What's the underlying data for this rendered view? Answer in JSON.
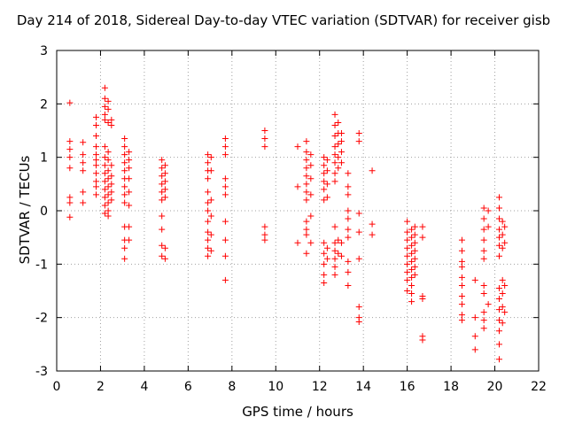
{
  "chart_data": {
    "type": "scatter",
    "title": "Day 214 of 2018, Sidereal Day-to-day VTEC variation (SDTVAR) for receiver gisb",
    "xlabel": "GPS time / hours",
    "ylabel": "SDTVAR / TECUs",
    "xlim": [
      0,
      22
    ],
    "ylim": [
      -3,
      3
    ],
    "xticks": [
      "0",
      "2",
      "4",
      "6",
      "8",
      "10",
      "12",
      "14",
      "16",
      "18",
      "20",
      "22"
    ],
    "yticks": [
      "-3",
      "-2",
      "-1",
      "0",
      "1",
      "2",
      "3"
    ],
    "grid": true,
    "marker": "+",
    "color": "#ff0000",
    "series": [
      {
        "name": "SDTVAR",
        "points": [
          [
            0.6,
            2.02
          ],
          [
            0.6,
            1.3
          ],
          [
            0.6,
            1.15
          ],
          [
            0.6,
            1.0
          ],
          [
            0.6,
            0.8
          ],
          [
            0.6,
            0.25
          ],
          [
            0.6,
            0.15
          ],
          [
            0.6,
            -0.12
          ],
          [
            1.2,
            1.28
          ],
          [
            1.2,
            1.05
          ],
          [
            1.2,
            0.9
          ],
          [
            1.2,
            0.75
          ],
          [
            1.2,
            0.35
          ],
          [
            1.2,
            0.15
          ],
          [
            1.8,
            1.75
          ],
          [
            1.8,
            1.6
          ],
          [
            1.8,
            1.4
          ],
          [
            1.8,
            1.2
          ],
          [
            1.8,
            1.05
          ],
          [
            1.8,
            0.95
          ],
          [
            1.8,
            0.85
          ],
          [
            1.8,
            0.7
          ],
          [
            1.8,
            0.55
          ],
          [
            1.8,
            0.45
          ],
          [
            1.8,
            0.3
          ],
          [
            2.2,
            2.3
          ],
          [
            2.2,
            2.1
          ],
          [
            2.2,
            1.95
          ],
          [
            2.2,
            1.8
          ],
          [
            2.2,
            1.7
          ],
          [
            2.2,
            1.2
          ],
          [
            2.2,
            1.0
          ],
          [
            2.2,
            0.85
          ],
          [
            2.2,
            0.7
          ],
          [
            2.2,
            0.55
          ],
          [
            2.2,
            0.4
          ],
          [
            2.2,
            0.25
          ],
          [
            2.2,
            0.1
          ],
          [
            2.2,
            -0.05
          ],
          [
            2.35,
            2.05
          ],
          [
            2.35,
            1.9
          ],
          [
            2.35,
            1.65
          ],
          [
            2.35,
            1.1
          ],
          [
            2.35,
            0.95
          ],
          [
            2.35,
            0.75
          ],
          [
            2.35,
            0.6
          ],
          [
            2.35,
            0.45
          ],
          [
            2.35,
            0.3
          ],
          [
            2.35,
            0.15
          ],
          [
            2.35,
            0.0
          ],
          [
            2.35,
            -0.1
          ],
          [
            2.5,
            1.7
          ],
          [
            2.5,
            1.6
          ],
          [
            2.5,
            0.85
          ],
          [
            2.5,
            0.65
          ],
          [
            2.5,
            0.5
          ],
          [
            2.5,
            0.35
          ],
          [
            2.5,
            0.2
          ],
          [
            3.1,
            1.35
          ],
          [
            3.1,
            1.2
          ],
          [
            3.1,
            1.05
          ],
          [
            3.1,
            0.9
          ],
          [
            3.1,
            0.75
          ],
          [
            3.1,
            0.6
          ],
          [
            3.1,
            0.45
          ],
          [
            3.1,
            0.3
          ],
          [
            3.1,
            0.15
          ],
          [
            3.1,
            -0.3
          ],
          [
            3.1,
            -0.55
          ],
          [
            3.1,
            -0.7
          ],
          [
            3.1,
            -0.9
          ],
          [
            3.3,
            1.1
          ],
          [
            3.3,
            0.95
          ],
          [
            3.3,
            0.8
          ],
          [
            3.3,
            0.6
          ],
          [
            3.3,
            0.35
          ],
          [
            3.3,
            0.1
          ],
          [
            3.3,
            -0.3
          ],
          [
            3.3,
            -0.55
          ],
          [
            4.8,
            0.95
          ],
          [
            4.8,
            0.8
          ],
          [
            4.8,
            0.65
          ],
          [
            4.8,
            0.5
          ],
          [
            4.8,
            0.35
          ],
          [
            4.8,
            0.2
          ],
          [
            4.8,
            -0.1
          ],
          [
            4.8,
            -0.35
          ],
          [
            4.8,
            -0.65
          ],
          [
            4.8,
            -0.85
          ],
          [
            4.95,
            0.85
          ],
          [
            4.95,
            0.7
          ],
          [
            4.95,
            0.55
          ],
          [
            4.95,
            0.4
          ],
          [
            4.95,
            0.25
          ],
          [
            4.95,
            -0.7
          ],
          [
            4.95,
            -0.9
          ],
          [
            6.9,
            1.05
          ],
          [
            6.9,
            0.9
          ],
          [
            6.9,
            0.75
          ],
          [
            6.9,
            0.6
          ],
          [
            6.9,
            0.35
          ],
          [
            6.9,
            0.15
          ],
          [
            6.9,
            0.0
          ],
          [
            6.9,
            -0.2
          ],
          [
            6.9,
            -0.4
          ],
          [
            6.9,
            -0.55
          ],
          [
            6.9,
            -0.7
          ],
          [
            6.9,
            -0.85
          ],
          [
            7.05,
            1.0
          ],
          [
            7.05,
            0.75
          ],
          [
            7.05,
            0.2
          ],
          [
            7.05,
            -0.1
          ],
          [
            7.05,
            -0.45
          ],
          [
            7.05,
            -0.75
          ],
          [
            7.7,
            1.35
          ],
          [
            7.7,
            1.2
          ],
          [
            7.7,
            1.05
          ],
          [
            7.7,
            0.6
          ],
          [
            7.7,
            0.45
          ],
          [
            7.7,
            0.3
          ],
          [
            7.7,
            -0.2
          ],
          [
            7.7,
            -0.55
          ],
          [
            7.7,
            -0.85
          ],
          [
            7.7,
            -1.3
          ],
          [
            9.5,
            1.5
          ],
          [
            9.5,
            1.35
          ],
          [
            9.5,
            1.2
          ],
          [
            9.5,
            -0.3
          ],
          [
            9.5,
            -0.45
          ],
          [
            9.5,
            -0.55
          ],
          [
            11.0,
            1.2
          ],
          [
            11.0,
            0.45
          ],
          [
            11.0,
            -0.6
          ],
          [
            11.4,
            1.3
          ],
          [
            11.4,
            1.1
          ],
          [
            11.4,
            0.95
          ],
          [
            11.4,
            0.8
          ],
          [
            11.4,
            0.65
          ],
          [
            11.4,
            0.5
          ],
          [
            11.4,
            0.35
          ],
          [
            11.4,
            0.2
          ],
          [
            11.4,
            -0.2
          ],
          [
            11.4,
            -0.35
          ],
          [
            11.4,
            -0.45
          ],
          [
            11.4,
            -0.8
          ],
          [
            11.6,
            1.05
          ],
          [
            11.6,
            0.85
          ],
          [
            11.6,
            0.6
          ],
          [
            11.6,
            0.3
          ],
          [
            11.6,
            -0.1
          ],
          [
            11.6,
            -0.6
          ],
          [
            12.2,
            1.0
          ],
          [
            12.2,
            0.85
          ],
          [
            12.2,
            0.7
          ],
          [
            12.2,
            0.55
          ],
          [
            12.2,
            0.4
          ],
          [
            12.2,
            0.2
          ],
          [
            12.2,
            -0.6
          ],
          [
            12.2,
            -0.8
          ],
          [
            12.2,
            -1.0
          ],
          [
            12.2,
            -1.2
          ],
          [
            12.2,
            -1.35
          ],
          [
            12.35,
            0.95
          ],
          [
            12.35,
            0.75
          ],
          [
            12.35,
            0.5
          ],
          [
            12.35,
            0.25
          ],
          [
            12.35,
            -0.7
          ],
          [
            12.35,
            -0.9
          ],
          [
            12.7,
            1.8
          ],
          [
            12.7,
            1.6
          ],
          [
            12.7,
            1.4
          ],
          [
            12.7,
            1.2
          ],
          [
            12.7,
            1.05
          ],
          [
            12.7,
            0.9
          ],
          [
            12.7,
            0.7
          ],
          [
            12.7,
            0.55
          ],
          [
            12.7,
            -0.3
          ],
          [
            12.7,
            -0.6
          ],
          [
            12.7,
            -0.75
          ],
          [
            12.7,
            -0.9
          ],
          [
            12.7,
            -1.05
          ],
          [
            12.7,
            -1.2
          ],
          [
            12.85,
            1.65
          ],
          [
            12.85,
            1.45
          ],
          [
            12.85,
            1.25
          ],
          [
            12.85,
            1.0
          ],
          [
            12.85,
            0.8
          ],
          [
            12.85,
            -0.55
          ],
          [
            12.85,
            -0.8
          ],
          [
            13.0,
            1.45
          ],
          [
            13.0,
            1.3
          ],
          [
            13.0,
            1.1
          ],
          [
            13.0,
            0.9
          ],
          [
            13.0,
            -0.6
          ],
          [
            13.0,
            -0.85
          ],
          [
            13.3,
            0.7
          ],
          [
            13.3,
            0.45
          ],
          [
            13.3,
            0.3
          ],
          [
            13.3,
            0.0
          ],
          [
            13.3,
            -0.15
          ],
          [
            13.3,
            -0.35
          ],
          [
            13.3,
            -0.5
          ],
          [
            13.3,
            -0.95
          ],
          [
            13.3,
            -1.15
          ],
          [
            13.3,
            -1.4
          ],
          [
            13.8,
            1.45
          ],
          [
            13.8,
            1.3
          ],
          [
            13.8,
            -0.05
          ],
          [
            13.8,
            -0.4
          ],
          [
            13.8,
            -0.9
          ],
          [
            13.8,
            -1.8
          ],
          [
            13.8,
            -2.0
          ],
          [
            13.8,
            -2.08
          ],
          [
            14.4,
            0.75
          ],
          [
            14.4,
            -0.25
          ],
          [
            14.4,
            -0.45
          ],
          [
            16.0,
            -0.2
          ],
          [
            16.0,
            -0.4
          ],
          [
            16.0,
            -0.55
          ],
          [
            16.0,
            -0.7
          ],
          [
            16.0,
            -0.85
          ],
          [
            16.0,
            -1.0
          ],
          [
            16.0,
            -1.15
          ],
          [
            16.0,
            -1.3
          ],
          [
            16.0,
            -1.5
          ],
          [
            16.2,
            -0.35
          ],
          [
            16.2,
            -0.5
          ],
          [
            16.2,
            -0.65
          ],
          [
            16.2,
            -0.8
          ],
          [
            16.2,
            -0.95
          ],
          [
            16.2,
            -1.1
          ],
          [
            16.2,
            -1.25
          ],
          [
            16.2,
            -1.4
          ],
          [
            16.2,
            -1.55
          ],
          [
            16.2,
            -1.7
          ],
          [
            16.35,
            -0.3
          ],
          [
            16.35,
            -0.45
          ],
          [
            16.35,
            -0.6
          ],
          [
            16.35,
            -0.75
          ],
          [
            16.35,
            -0.9
          ],
          [
            16.35,
            -1.05
          ],
          [
            16.35,
            -1.2
          ],
          [
            16.7,
            -0.3
          ],
          [
            16.7,
            -0.5
          ],
          [
            16.7,
            -1.6
          ],
          [
            16.7,
            -1.65
          ],
          [
            16.7,
            -2.35
          ],
          [
            16.7,
            -2.42
          ],
          [
            18.5,
            -0.55
          ],
          [
            18.5,
            -0.75
          ],
          [
            18.5,
            -0.95
          ],
          [
            18.5,
            -1.05
          ],
          [
            18.5,
            -1.25
          ],
          [
            18.5,
            -1.4
          ],
          [
            18.5,
            -1.6
          ],
          [
            18.5,
            -1.75
          ],
          [
            18.5,
            -1.95
          ],
          [
            18.5,
            -2.05
          ],
          [
            19.1,
            -1.3
          ],
          [
            19.1,
            -2.0
          ],
          [
            19.1,
            -2.35
          ],
          [
            19.1,
            -2.6
          ],
          [
            19.5,
            0.05
          ],
          [
            19.5,
            -0.15
          ],
          [
            19.5,
            -0.35
          ],
          [
            19.5,
            -0.55
          ],
          [
            19.5,
            -0.75
          ],
          [
            19.5,
            -0.9
          ],
          [
            19.5,
            -1.4
          ],
          [
            19.5,
            -1.55
          ],
          [
            19.5,
            -1.9
          ],
          [
            19.5,
            -2.05
          ],
          [
            19.5,
            -2.2
          ],
          [
            19.7,
            0.0
          ],
          [
            19.7,
            -0.3
          ],
          [
            19.7,
            -1.75
          ],
          [
            20.2,
            0.25
          ],
          [
            20.2,
            0.05
          ],
          [
            20.2,
            -0.15
          ],
          [
            20.2,
            -0.35
          ],
          [
            20.2,
            -0.5
          ],
          [
            20.2,
            -0.65
          ],
          [
            20.2,
            -0.85
          ],
          [
            20.2,
            -1.45
          ],
          [
            20.2,
            -1.65
          ],
          [
            20.2,
            -1.85
          ],
          [
            20.2,
            -2.05
          ],
          [
            20.2,
            -2.25
          ],
          [
            20.2,
            -2.5
          ],
          [
            20.2,
            -2.78
          ],
          [
            20.35,
            -0.2
          ],
          [
            20.35,
            -0.45
          ],
          [
            20.35,
            -0.7
          ],
          [
            20.35,
            -1.3
          ],
          [
            20.35,
            -1.55
          ],
          [
            20.35,
            -1.8
          ],
          [
            20.35,
            -2.1
          ],
          [
            20.45,
            -0.3
          ],
          [
            20.45,
            -0.6
          ],
          [
            20.45,
            -1.4
          ],
          [
            20.45,
            -1.9
          ]
        ]
      }
    ]
  }
}
